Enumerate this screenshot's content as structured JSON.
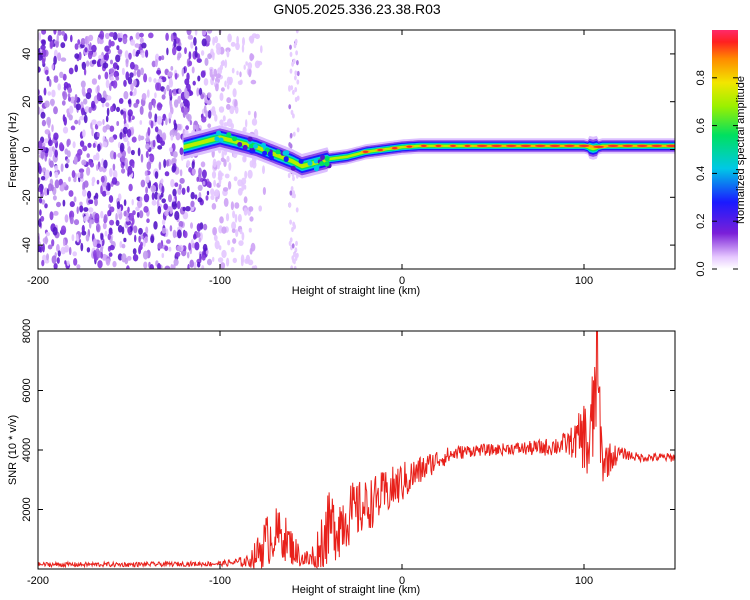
{
  "title": "GN05.2025.336.23.38.R03",
  "chart_data": [
    {
      "type": "heatmap",
      "xlabel": "Height of straight line (km)",
      "ylabel": "Frequency (Hz)",
      "xlim": [
        -200,
        150
      ],
      "ylim": [
        -50,
        50
      ],
      "xticks": [
        -200,
        -100,
        0,
        100
      ],
      "yticks": [
        -40,
        -20,
        0,
        20,
        40
      ],
      "grid": false,
      "noise_region_x": [
        -200,
        -85
      ],
      "secondary_noise_band_x": [
        -62,
        -57
      ],
      "signal_ridge": {
        "x": [
          -120,
          -105,
          -100,
          -90,
          -80,
          -70,
          -60,
          -55,
          -50,
          -45,
          -40,
          -30,
          -20,
          -10,
          0,
          10,
          20,
          40,
          60,
          80,
          90,
          100,
          105,
          110,
          150
        ],
        "frequency": [
          1,
          4,
          5,
          3,
          1,
          -2,
          -5,
          -7,
          -6,
          -5,
          -4,
          -3,
          -1,
          0,
          1,
          1.5,
          1.5,
          1.5,
          1.5,
          1.5,
          1.5,
          1.5,
          0.5,
          1.5,
          1.5
        ]
      },
      "colorbar": {
        "label": "Normalized spectral amplitude",
        "range": [
          0,
          1
        ],
        "ticks": [
          0.0,
          0.2,
          0.4,
          0.6,
          0.8
        ]
      }
    },
    {
      "type": "line",
      "xlabel": "Height of straight line (km)",
      "ylabel": "SNR (10 * v/v)",
      "xlim": [
        -200,
        150
      ],
      "ylim": [
        0,
        8000
      ],
      "xticks": [
        -200,
        -100,
        0,
        100
      ],
      "yticks": [
        2000,
        4000,
        6000,
        8000
      ],
      "grid": false,
      "series": [
        {
          "name": "SNR",
          "color": "#e8201a",
          "x": [
            -200,
            -150,
            -100,
            -85,
            -80,
            -75,
            -70,
            -65,
            -60,
            -55,
            -50,
            -45,
            -40,
            -35,
            -30,
            -20,
            -10,
            0,
            10,
            20,
            30,
            40,
            50,
            60,
            70,
            80,
            90,
            95,
            100,
            103,
            105,
            107,
            110,
            120,
            130,
            150
          ],
          "values": [
            150,
            150,
            180,
            250,
            500,
            900,
            1200,
            1100,
            700,
            350,
            300,
            900,
            1400,
            1500,
            1800,
            2100,
            2500,
            2900,
            3300,
            3700,
            3900,
            4000,
            4000,
            4050,
            4050,
            4100,
            4200,
            4300,
            4500,
            4000,
            5000,
            7000,
            3600,
            3900,
            3750,
            3750
          ],
          "noise_amplitude": [
            80,
            80,
            80,
            200,
            500,
            900,
            900,
            800,
            600,
            300,
            400,
            1000,
            1200,
            1200,
            1100,
            900,
            800,
            700,
            500,
            350,
            250,
            200,
            200,
            200,
            250,
            300,
            400,
            600,
            1200,
            1800,
            2000,
            2400,
            800,
            200,
            150,
            150
          ]
        }
      ]
    }
  ]
}
